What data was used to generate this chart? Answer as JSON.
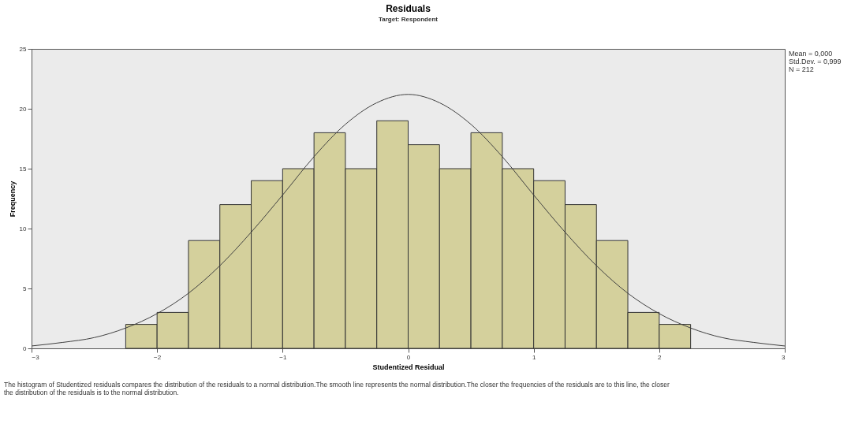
{
  "chart_data": {
    "type": "histogram",
    "title": "Residuals",
    "subtitle": "Target: Respondent",
    "xlabel": "Studentized Residual",
    "ylabel": "Frequency",
    "bins": [
      -2.25,
      -2.0,
      -1.75,
      -1.5,
      -1.25,
      -1.0,
      -0.75,
      -0.5,
      -0.25,
      0.0,
      0.25,
      0.5,
      0.75,
      1.0,
      1.25,
      1.5,
      1.75,
      2.0,
      2.25
    ],
    "values": [
      2,
      3,
      9,
      12,
      14,
      15,
      18,
      15,
      19,
      17,
      15,
      18,
      15,
      14,
      12,
      9,
      3,
      2
    ],
    "color": "#d4d09c",
    "series": [
      {
        "type": "line",
        "color": "#404040",
        "x": [
          -3,
          -2.75,
          -2.5,
          -2.25,
          -2,
          -1.75,
          -1.5,
          -1.25,
          -1,
          -0.75,
          -0.5,
          -0.25,
          0,
          0.25,
          0.5,
          0.75,
          1,
          1.25,
          1.5,
          1.75,
          2,
          2.25,
          2.5,
          2.75,
          3
        ],
        "values": [
          0.2,
          0.5,
          0.9,
          1.7,
          2.9,
          4.6,
          6.9,
          9.7,
          12.8,
          16.0,
          18.7,
          20.5,
          21.2,
          20.5,
          18.7,
          16.0,
          12.8,
          9.7,
          6.9,
          4.6,
          2.9,
          1.7,
          0.9,
          0.5,
          0.2
        ]
      }
    ],
    "xlim": [
      -3,
      3
    ],
    "xticks": [
      -3,
      -2,
      -1,
      0,
      1,
      2,
      3
    ],
    "ylim": [
      0,
      25
    ],
    "yticks": [
      0,
      5,
      10,
      15,
      20,
      25
    ],
    "grid": false,
    "annotations": [
      "Mean = 0,000",
      "Std.Dev. = 0,999",
      "N = 212",
      "The histogram of Studentized residuals compares the distribution of the residuals to a normal distribution.The smooth line represents the normal distribution.The closer the frequencies of the residuals are to this line, the closer the distribution of the residuals is to the normal distribution."
    ]
  }
}
